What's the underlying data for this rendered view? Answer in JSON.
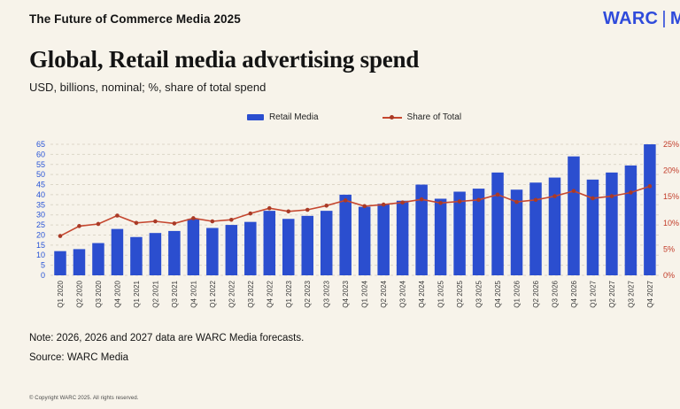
{
  "header": {
    "report_title": "The Future of Commerce Media 2025",
    "logo_main": "WARC",
    "logo_separator": "|",
    "logo_suffix": "M",
    "logo_color": "#2f4bdb"
  },
  "chart_header": {
    "title": "Global, Retail media advertising spend",
    "subtitle": "USD, billions, nominal; %, share of total spend"
  },
  "legend": {
    "items": [
      {
        "label": "Retail Media",
        "type": "bar",
        "color": "#2b4ecf"
      },
      {
        "label": "Share of Total",
        "type": "line",
        "color": "#c5472f",
        "dot_color": "#a93a26"
      }
    ]
  },
  "chart_data": {
    "type": "bar+line",
    "title": "Global, Retail media advertising spend",
    "categories": [
      "Q1 2020",
      "Q2 2020",
      "Q3 2020",
      "Q4 2020",
      "Q1 2021",
      "Q2 2021",
      "Q3 2021",
      "Q4 2021",
      "Q1 2022",
      "Q2 2022",
      "Q3 2022",
      "Q4 2022",
      "Q1 2023",
      "Q2 2023",
      "Q3 2023",
      "Q4 2023",
      "Q1 2024",
      "Q2 2024",
      "Q3 2024",
      "Q4 2024",
      "Q1 2025",
      "Q2 2025",
      "Q3 2025",
      "Q4 2025",
      "Q1 2026",
      "Q2 2026",
      "Q3 2026",
      "Q4 2026",
      "Q1 2027",
      "Q2 2027",
      "Q3 2027",
      "Q4 2027"
    ],
    "series": [
      {
        "name": "Retail Media",
        "type": "bar",
        "axis": "left",
        "unit": "USD billions",
        "color": "#2b4ecf",
        "values": [
          12,
          13,
          16,
          23,
          19,
          21,
          22,
          28,
          23.5,
          25,
          26.5,
          32,
          28,
          29.5,
          32,
          40,
          34,
          35.5,
          37,
          45,
          38,
          41.5,
          43,
          51,
          42.5,
          46,
          48.5,
          59,
          47.5,
          51,
          54.5,
          65
        ]
      },
      {
        "name": "Share of Total",
        "type": "line",
        "axis": "right",
        "unit": "% share of total spend",
        "color": "#c5472f",
        "dot_color": "#a93a26",
        "values": [
          7.5,
          9.4,
          9.8,
          11.4,
          10.0,
          10.3,
          9.9,
          10.9,
          10.3,
          10.6,
          11.8,
          12.8,
          12.2,
          12.5,
          13.3,
          14.3,
          13.2,
          13.5,
          13.9,
          14.5,
          13.8,
          14.1,
          14.4,
          15.4,
          14.0,
          14.4,
          15.1,
          16.1,
          14.7,
          15.1,
          15.8,
          17.0
        ]
      }
    ],
    "left_axis": {
      "min": 0,
      "max": 65,
      "step": 5,
      "tick_color": "#2753d6"
    },
    "right_axis": {
      "min": 0,
      "max": 25,
      "step": 5,
      "tick_labels": [
        "0%",
        "5%",
        "10%",
        "15%",
        "20%",
        "25%"
      ],
      "tick_color": "#c23b28"
    },
    "x_tick_color": "#3a3a3a",
    "grid": {
      "orientation": "horizontal",
      "style": "dashed",
      "color": "#dcd6c8"
    },
    "legend_position": "top-center"
  },
  "footer": {
    "note": "Note: 2026, 2026 and 2027 data are WARC Media forecasts.",
    "source": "Source: WARC Media",
    "copyright": "© Copyright WARC 2025. All rights reserved."
  }
}
